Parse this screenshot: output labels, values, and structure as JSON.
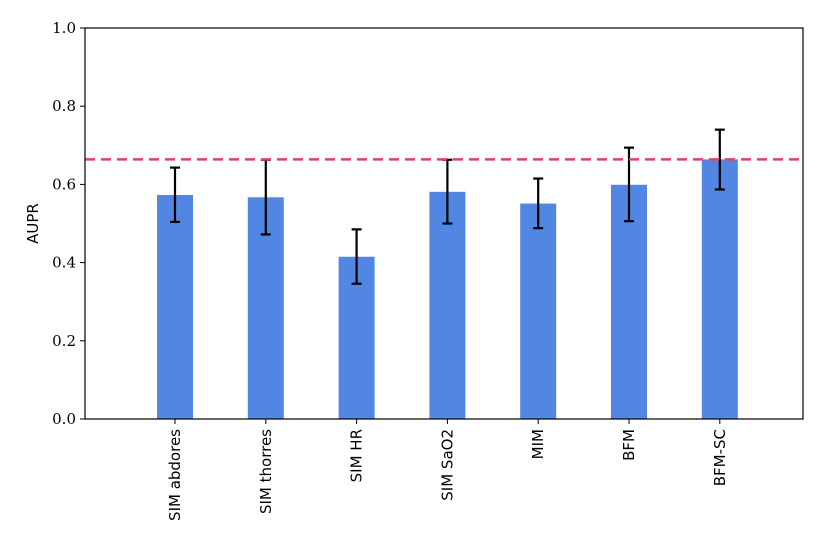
{
  "chart_data": {
    "type": "bar",
    "categories": [
      "SIM abdores",
      "SIM thorres",
      "SIM HR",
      "SIM SaO2",
      "MIM",
      "BFM",
      "BFM-SC"
    ],
    "values": [
      0.573,
      0.567,
      0.415,
      0.581,
      0.551,
      0.599,
      0.664
    ],
    "error_low": [
      0.504,
      0.472,
      0.346,
      0.5,
      0.488,
      0.506,
      0.587
    ],
    "error_high": [
      0.643,
      0.663,
      0.485,
      0.663,
      0.615,
      0.694,
      0.74
    ],
    "reference_line": 0.664,
    "ylabel": "AUPR",
    "xlabel": "",
    "ylim": [
      0.0,
      1.0
    ],
    "yticks": [
      "0.0",
      "0.2",
      "0.4",
      "0.6",
      "0.8",
      "1.0"
    ],
    "grid": false,
    "colors": {
      "bar": "#5286e3",
      "reference": "#e8415f",
      "error": "#000000"
    }
  }
}
